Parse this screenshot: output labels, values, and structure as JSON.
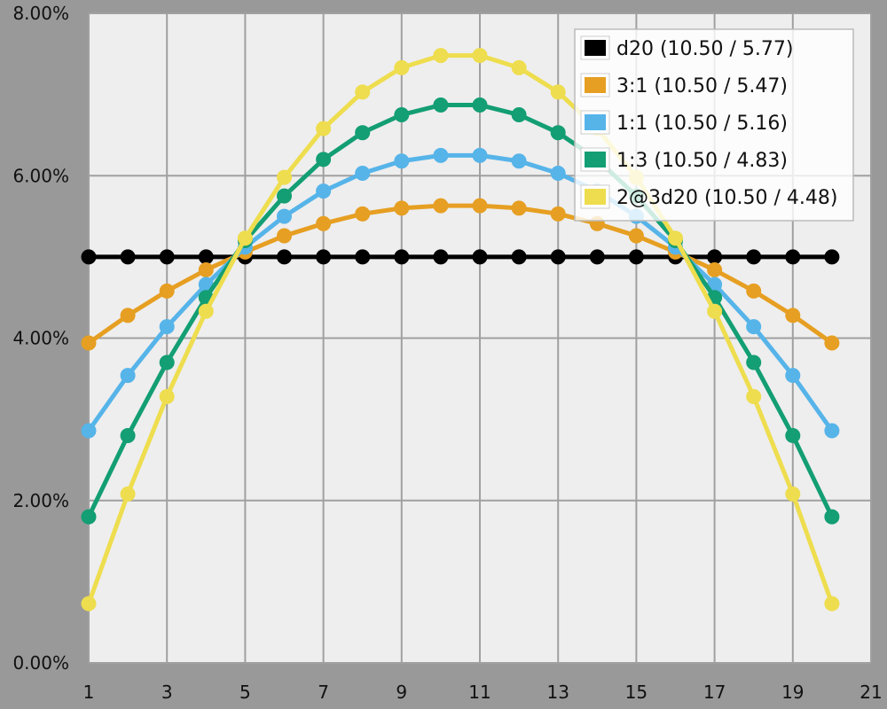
{
  "chart_data": {
    "type": "line",
    "x": [
      1,
      2,
      3,
      4,
      5,
      6,
      7,
      8,
      9,
      10,
      11,
      12,
      13,
      14,
      15,
      16,
      17,
      18,
      19,
      20
    ],
    "xlim": [
      1,
      21
    ],
    "x_ticks": [
      "1",
      "3",
      "5",
      "7",
      "9",
      "11",
      "13",
      "15",
      "17",
      "19",
      "21"
    ],
    "ylim": [
      0,
      8
    ],
    "y_ticks": [
      "0.00%",
      "2.00%",
      "4.00%",
      "6.00%",
      "8.00%"
    ],
    "grid": true,
    "legend_position": "top-right",
    "series": [
      {
        "name": "d20 (10.50 / 5.77)",
        "color": "#000000",
        "values": [
          5,
          5,
          5,
          5,
          5,
          5,
          5,
          5,
          5,
          5,
          5,
          5,
          5,
          5,
          5,
          5,
          5,
          5,
          5,
          5
        ]
      },
      {
        "name": "3:1 (10.50 / 5.47)",
        "color": "#e69f22",
        "values": [
          3.94,
          4.28,
          4.58,
          4.84,
          5.06,
          5.26,
          5.41,
          5.53,
          5.6,
          5.63,
          5.63,
          5.6,
          5.53,
          5.41,
          5.26,
          5.06,
          4.84,
          4.58,
          4.28,
          3.94
        ]
      },
      {
        "name": "1:1 (10.50 / 5.16)",
        "color": "#56b4e9",
        "values": [
          2.86,
          3.54,
          4.14,
          4.66,
          5.12,
          5.5,
          5.81,
          6.03,
          6.18,
          6.25,
          6.25,
          6.18,
          6.03,
          5.81,
          5.5,
          5.12,
          4.66,
          4.14,
          3.54,
          2.86
        ]
      },
      {
        "name": "1:3 (10.50 / 4.83)",
        "color": "#139e73",
        "values": [
          1.8,
          2.8,
          3.7,
          4.5,
          5.2,
          5.75,
          6.2,
          6.53,
          6.75,
          6.87,
          6.87,
          6.75,
          6.53,
          6.2,
          5.75,
          5.2,
          4.5,
          3.7,
          2.8,
          1.8
        ]
      },
      {
        "name": "2@3d20 (10.50 / 4.48)",
        "color": "#eedd4e",
        "values": [
          0.73,
          2.08,
          3.28,
          4.33,
          5.23,
          5.98,
          6.58,
          7.03,
          7.33,
          7.48,
          7.48,
          7.33,
          7.03,
          6.58,
          5.98,
          5.23,
          4.33,
          3.28,
          2.08,
          0.73
        ]
      }
    ]
  }
}
